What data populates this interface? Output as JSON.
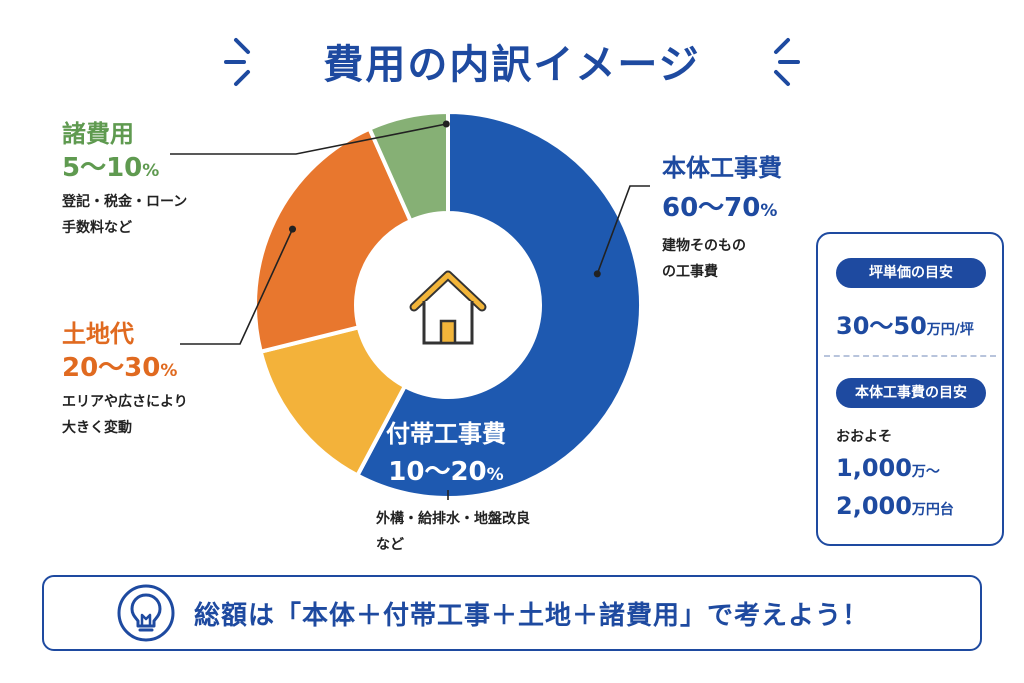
{
  "title": "費用の内訳イメージ",
  "colors": {
    "main": "#1e59b0",
    "attached": "#f3b23a",
    "land": "#e8772e",
    "misc": "#86b075",
    "accent": "#1e4aa0",
    "house": "#f2b53a"
  },
  "chart_data": {
    "type": "pie",
    "style": "donut",
    "slices": [
      {
        "name": "本体工事費",
        "range": "60〜70",
        "unit": "%",
        "value": 65,
        "desc": [
          "建物そのもの",
          "の工事費"
        ]
      },
      {
        "name": "付帯工事費",
        "range": "10〜20",
        "unit": "%",
        "value": 15,
        "desc": [
          "外構・給排水・地盤改良",
          "など"
        ]
      },
      {
        "name": "土地代",
        "range": "20〜30",
        "unit": "%",
        "value": 25,
        "desc": [
          "エリアや広さにより",
          "大きく変動"
        ]
      },
      {
        "name": "諸費用",
        "range": "5〜10",
        "unit": "%",
        "value": 7.5,
        "desc": [
          "登記・税金・ローン",
          "手数料など"
        ]
      }
    ],
    "center_icon": "house-icon"
  },
  "side": {
    "tsubo_label": "坪単価の目安",
    "tsubo_value": "30〜50",
    "tsubo_unit": "万円/坪",
    "main_label": "本体工事費の目安",
    "approx": "おおよそ",
    "main_value1": "1,000",
    "main_unit1": "万〜",
    "main_value2": "2,000",
    "main_unit2": "万円台"
  },
  "bottom": {
    "icon": "lightbulb-icon",
    "text": "総額は「本体＋付帯工事＋土地＋諸費用」で考えよう！"
  }
}
